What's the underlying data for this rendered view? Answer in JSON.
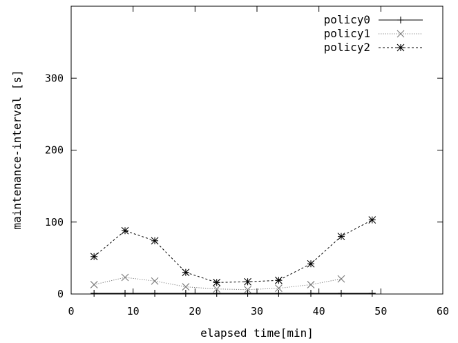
{
  "chart_data": {
    "type": "line",
    "title": "",
    "xlabel": "elapsed time[min]",
    "ylabel": "maintenance-interval [s]",
    "xlim": [
      0,
      60
    ],
    "ylim": [
      0,
      400
    ],
    "xticks": [
      0,
      10,
      20,
      30,
      40,
      50,
      60
    ],
    "yticks": [
      0,
      100,
      200,
      300
    ],
    "xtick_labels": [
      "0",
      "10",
      "20",
      "30",
      "40",
      "50",
      "60"
    ],
    "ytick_labels": [
      "0",
      "100",
      "200",
      "300"
    ],
    "grid": false,
    "legend_position": "top-right",
    "series": [
      {
        "name": "policy0",
        "marker": "plus",
        "line_style": "solid",
        "color": "#000000",
        "x": [
          3.7,
          8.7,
          13.5,
          18.5,
          23.5,
          28.5,
          33.5,
          38.7,
          43.6,
          48.6
        ],
        "values": [
          1,
          1,
          1,
          1,
          1,
          1,
          1,
          1,
          1,
          1
        ]
      },
      {
        "name": "policy1",
        "marker": "cross",
        "line_style": "dotted",
        "color": "#777777",
        "x": [
          3.7,
          8.7,
          13.5,
          18.5,
          23.5,
          28.5,
          33.5,
          38.7,
          43.6
        ],
        "values": [
          13,
          23,
          18,
          10,
          7,
          6,
          8,
          13,
          21
        ]
      },
      {
        "name": "policy2",
        "marker": "asterisk",
        "line_style": "dashed",
        "color": "#000000",
        "x": [
          3.7,
          8.7,
          13.5,
          18.5,
          23.5,
          28.5,
          33.5,
          38.7,
          43.6,
          48.6
        ],
        "values": [
          52,
          88,
          74,
          30,
          16,
          17,
          19,
          42,
          80,
          103
        ]
      }
    ]
  }
}
